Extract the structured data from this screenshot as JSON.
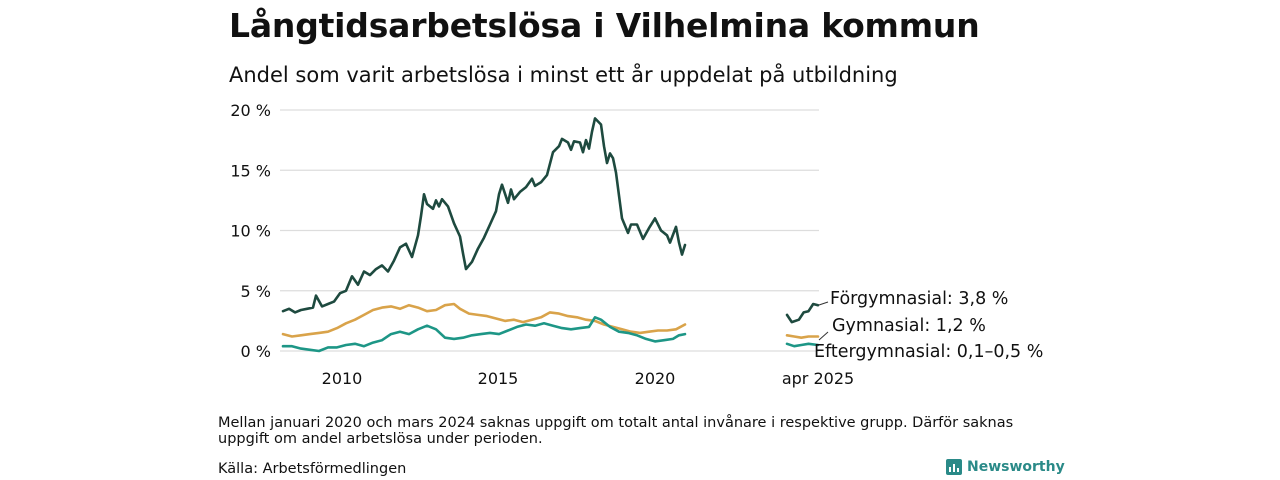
{
  "title": "Långtidsarbetslösa i Vilhelmina kommun",
  "subtitle": "Andel som varit arbetslösa i minst ett år uppdelat på utbildning",
  "note": "Mellan januari 2020 och mars 2024 saknas uppgift om totalt antal invånare i respektive grupp. Därför saknas uppgift om andel arbetslösa under perioden.",
  "source": "Källa: Arbetsförmedlingen",
  "brand": "Newsworthy",
  "colors": {
    "forgymnasial": "#1e4a3f",
    "gymnasial": "#d9a34a",
    "eftergymnasial": "#1d9686",
    "grid": "#dddddd",
    "text": "#111111"
  },
  "chart_data": {
    "type": "line",
    "title": "Långtidsarbetslösa i Vilhelmina kommun",
    "subtitle": "Andel som varit arbetslösa i minst ett år uppdelat på utbildning",
    "ylim": [
      0,
      20
    ],
    "yticks": [
      {
        "value": 0,
        "label": "0 %"
      },
      {
        "value": 5,
        "label": "5 %"
      },
      {
        "value": 10,
        "label": "10 %"
      },
      {
        "value": 15,
        "label": "15 %"
      },
      {
        "value": 20,
        "label": "20 %"
      }
    ],
    "xticks": [
      {
        "date": "2010-01",
        "label": "2010"
      },
      {
        "date": "2015-01",
        "label": "2015"
      },
      {
        "date": "2020-01",
        "label": "2020"
      },
      {
        "date": "2025-04",
        "label": "apr 2025"
      }
    ],
    "x_domain": [
      "2008-05",
      "2025-07"
    ],
    "grid": true,
    "gap_note": "Mellan januari 2020 och mars 2024 saknas uppgift",
    "series": [
      {
        "name": "Förgymnasial",
        "label": "Förgymnasial: 3,8 %",
        "color": "#1e4a3f",
        "segments": [
          [
            [
              "2008-05",
              3.3
            ],
            [
              "2008-07",
              3.5
            ],
            [
              "2008-09",
              3.2
            ],
            [
              "2008-11",
              3.4
            ],
            [
              "2009-01",
              3.5
            ],
            [
              "2009-03",
              3.6
            ],
            [
              "2009-04",
              4.6
            ],
            [
              "2009-06",
              3.7
            ],
            [
              "2009-08",
              3.9
            ],
            [
              "2009-10",
              4.1
            ],
            [
              "2009-12",
              4.8
            ],
            [
              "2010-02",
              5.0
            ],
            [
              "2010-04",
              6.2
            ],
            [
              "2010-06",
              5.5
            ],
            [
              "2010-08",
              6.6
            ],
            [
              "2010-10",
              6.3
            ],
            [
              "2010-12",
              6.8
            ],
            [
              "2011-02",
              7.1
            ],
            [
              "2011-04",
              6.6
            ],
            [
              "2011-06",
              7.5
            ],
            [
              "2011-08",
              8.6
            ],
            [
              "2011-10",
              8.9
            ],
            [
              "2011-12",
              7.8
            ],
            [
              "2012-02",
              9.6
            ],
            [
              "2012-03",
              11.2
            ],
            [
              "2012-04",
              13.0
            ],
            [
              "2012-05",
              12.2
            ],
            [
              "2012-07",
              11.8
            ],
            [
              "2012-08",
              12.5
            ],
            [
              "2012-09",
              12.0
            ],
            [
              "2012-10",
              12.6
            ],
            [
              "2012-12",
              12.0
            ],
            [
              "2013-02",
              10.6
            ],
            [
              "2013-04",
              9.5
            ],
            [
              "2013-05",
              8.1
            ],
            [
              "2013-06",
              6.8
            ],
            [
              "2013-08",
              7.4
            ],
            [
              "2013-10",
              8.5
            ],
            [
              "2013-12",
              9.4
            ],
            [
              "2014-02",
              10.5
            ],
            [
              "2014-04",
              11.6
            ],
            [
              "2014-05",
              13.0
            ],
            [
              "2014-06",
              13.8
            ],
            [
              "2014-08",
              12.3
            ],
            [
              "2014-09",
              13.4
            ],
            [
              "2014-10",
              12.6
            ],
            [
              "2014-12",
              13.2
            ],
            [
              "2015-02",
              13.6
            ],
            [
              "2015-04",
              14.3
            ],
            [
              "2015-05",
              13.7
            ],
            [
              "2015-07",
              14.0
            ],
            [
              "2015-09",
              14.6
            ],
            [
              "2015-11",
              16.5
            ],
            [
              "2016-01",
              17.0
            ],
            [
              "2016-02",
              17.6
            ],
            [
              "2016-04",
              17.3
            ],
            [
              "2016-05",
              16.7
            ],
            [
              "2016-06",
              17.4
            ],
            [
              "2016-08",
              17.3
            ],
            [
              "2016-09",
              16.5
            ],
            [
              "2016-10",
              17.5
            ],
            [
              "2016-11",
              16.8
            ],
            [
              "2016-12",
              18.2
            ],
            [
              "2017-01",
              19.3
            ],
            [
              "2017-03",
              18.8
            ],
            [
              "2017-04",
              17.0
            ],
            [
              "2017-05",
              15.6
            ],
            [
              "2017-06",
              16.4
            ],
            [
              "2017-07",
              16.0
            ],
            [
              "2017-08",
              14.8
            ],
            [
              "2017-10",
              11.0
            ],
            [
              "2017-12",
              9.8
            ],
            [
              "2018-01",
              10.5
            ],
            [
              "2018-03",
              10.5
            ],
            [
              "2018-05",
              9.3
            ],
            [
              "2018-07",
              10.2
            ],
            [
              "2018-09",
              11.0
            ],
            [
              "2018-11",
              10.0
            ],
            [
              "2019-01",
              9.6
            ],
            [
              "2019-02",
              9.0
            ],
            [
              "2019-04",
              10.3
            ],
            [
              "2019-05",
              9.0
            ],
            [
              "2019-06",
              8.0
            ],
            [
              "2019-07",
              8.8
            ]
          ],
          [
            [
              "2024-04",
              3.0
            ],
            [
              "2024-06",
              2.4
            ],
            [
              "2024-09",
              2.6
            ],
            [
              "2024-11",
              3.2
            ],
            [
              "2025-01",
              3.3
            ],
            [
              "2025-03",
              3.9
            ],
            [
              "2025-05",
              3.8
            ]
          ]
        ]
      },
      {
        "name": "Gymnasial",
        "label": "Gymnasial: 1,2 %",
        "color": "#d9a34a",
        "segments": [
          [
            [
              "2008-05",
              1.4
            ],
            [
              "2008-08",
              1.2
            ],
            [
              "2008-11",
              1.3
            ],
            [
              "2009-02",
              1.4
            ],
            [
              "2009-05",
              1.5
            ],
            [
              "2009-08",
              1.6
            ],
            [
              "2009-11",
              1.9
            ],
            [
              "2010-02",
              2.3
            ],
            [
              "2010-05",
              2.6
            ],
            [
              "2010-08",
              3.0
            ],
            [
              "2010-11",
              3.4
            ],
            [
              "2011-02",
              3.6
            ],
            [
              "2011-05",
              3.7
            ],
            [
              "2011-08",
              3.5
            ],
            [
              "2011-11",
              3.8
            ],
            [
              "2012-02",
              3.6
            ],
            [
              "2012-05",
              3.3
            ],
            [
              "2012-08",
              3.4
            ],
            [
              "2012-11",
              3.8
            ],
            [
              "2013-02",
              3.9
            ],
            [
              "2013-04",
              3.5
            ],
            [
              "2013-07",
              3.1
            ],
            [
              "2013-10",
              3.0
            ],
            [
              "2014-01",
              2.9
            ],
            [
              "2014-04",
              2.7
            ],
            [
              "2014-07",
              2.5
            ],
            [
              "2014-10",
              2.6
            ],
            [
              "2015-01",
              2.4
            ],
            [
              "2015-04",
              2.6
            ],
            [
              "2015-07",
              2.8
            ],
            [
              "2015-10",
              3.2
            ],
            [
              "2016-01",
              3.1
            ],
            [
              "2016-04",
              2.9
            ],
            [
              "2016-07",
              2.8
            ],
            [
              "2016-10",
              2.6
            ],
            [
              "2017-01",
              2.5
            ],
            [
              "2017-04",
              2.2
            ],
            [
              "2017-07",
              2.0
            ],
            [
              "2017-10",
              1.8
            ],
            [
              "2018-01",
              1.6
            ],
            [
              "2018-04",
              1.5
            ],
            [
              "2018-07",
              1.6
            ],
            [
              "2018-10",
              1.7
            ],
            [
              "2019-01",
              1.7
            ],
            [
              "2019-04",
              1.8
            ],
            [
              "2019-07",
              2.2
            ]
          ],
          [
            [
              "2024-04",
              1.3
            ],
            [
              "2024-07",
              1.2
            ],
            [
              "2024-10",
              1.1
            ],
            [
              "2025-01",
              1.2
            ],
            [
              "2025-05",
              1.2
            ]
          ]
        ]
      },
      {
        "name": "Eftergymnasial",
        "label": "Eftergymnasial: 0,1–0,5 %",
        "color": "#1d9686",
        "segments": [
          [
            [
              "2008-05",
              0.4
            ],
            [
              "2008-08",
              0.4
            ],
            [
              "2008-11",
              0.2
            ],
            [
              "2009-02",
              0.1
            ],
            [
              "2009-05",
              0.0
            ],
            [
              "2009-08",
              0.3
            ],
            [
              "2009-11",
              0.3
            ],
            [
              "2010-02",
              0.5
            ],
            [
              "2010-05",
              0.6
            ],
            [
              "2010-08",
              0.4
            ],
            [
              "2010-11",
              0.7
            ],
            [
              "2011-02",
              0.9
            ],
            [
              "2011-05",
              1.4
            ],
            [
              "2011-08",
              1.6
            ],
            [
              "2011-11",
              1.4
            ],
            [
              "2012-02",
              1.8
            ],
            [
              "2012-05",
              2.1
            ],
            [
              "2012-08",
              1.8
            ],
            [
              "2012-11",
              1.1
            ],
            [
              "2013-02",
              1.0
            ],
            [
              "2013-05",
              1.1
            ],
            [
              "2013-08",
              1.3
            ],
            [
              "2013-11",
              1.4
            ],
            [
              "2014-02",
              1.5
            ],
            [
              "2014-05",
              1.4
            ],
            [
              "2014-08",
              1.7
            ],
            [
              "2014-11",
              2.0
            ],
            [
              "2015-02",
              2.2
            ],
            [
              "2015-05",
              2.1
            ],
            [
              "2015-08",
              2.3
            ],
            [
              "2015-11",
              2.1
            ],
            [
              "2016-02",
              1.9
            ],
            [
              "2016-05",
              1.8
            ],
            [
              "2016-08",
              1.9
            ],
            [
              "2016-11",
              2.0
            ],
            [
              "2017-01",
              2.8
            ],
            [
              "2017-03",
              2.6
            ],
            [
              "2017-06",
              2.0
            ],
            [
              "2017-09",
              1.6
            ],
            [
              "2017-12",
              1.5
            ],
            [
              "2018-03",
              1.3
            ],
            [
              "2018-06",
              1.0
            ],
            [
              "2018-09",
              0.8
            ],
            [
              "2018-12",
              0.9
            ],
            [
              "2019-03",
              1.0
            ],
            [
              "2019-05",
              1.3
            ],
            [
              "2019-07",
              1.4
            ]
          ],
          [
            [
              "2024-04",
              0.6
            ],
            [
              "2024-07",
              0.4
            ],
            [
              "2024-10",
              0.5
            ],
            [
              "2025-01",
              0.6
            ],
            [
              "2025-05",
              0.5
            ]
          ]
        ]
      }
    ]
  }
}
